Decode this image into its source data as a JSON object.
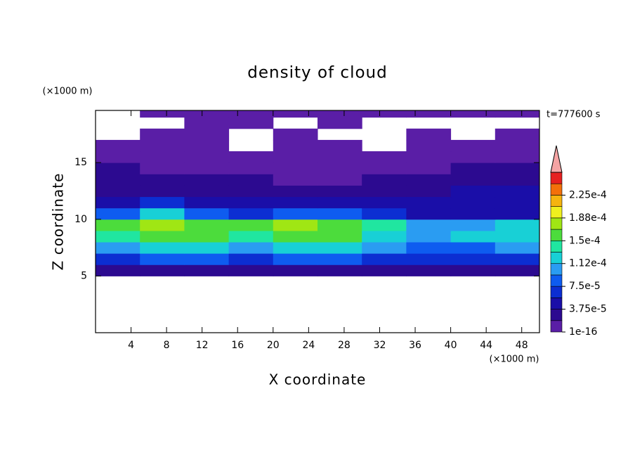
{
  "chart_data": {
    "type": "contour",
    "title": "density of cloud",
    "xlabel": "X coordinate",
    "ylabel": "Z coordinate",
    "xunit": "(×1000 m)",
    "yunit": "(×1000 m)",
    "annotation": "t=777600 s",
    "xlim": [
      0,
      50
    ],
    "ylim": [
      0,
      19.6
    ],
    "xticks": [
      4,
      8,
      12,
      16,
      20,
      24,
      28,
      32,
      36,
      40,
      44,
      48
    ],
    "yticks": [
      5,
      10,
      15
    ],
    "x": [
      2.5,
      7.5,
      12.5,
      17.5,
      22.5,
      27.5,
      32.5,
      37.5,
      42.5,
      47.5
    ],
    "z": [
      0.5,
      1.5,
      2.5,
      3.5,
      4.5,
      5.5,
      6.5,
      7.5,
      8.5,
      9.5,
      10.5,
      11.5,
      12.5,
      13.5,
      14.5,
      15.5,
      16.5,
      17.5,
      18.5,
      19.5
    ],
    "values": [
      [
        null,
        null,
        null,
        null,
        null,
        null,
        null,
        null,
        null,
        null
      ],
      [
        null,
        null,
        null,
        null,
        null,
        null,
        null,
        null,
        null,
        null
      ],
      [
        null,
        null,
        null,
        null,
        null,
        null,
        null,
        null,
        null,
        null
      ],
      [
        null,
        null,
        null,
        null,
        null,
        null,
        null,
        null,
        null,
        null
      ],
      [
        null,
        null,
        null,
        null,
        null,
        null,
        null,
        null,
        null,
        null
      ],
      [
        3e-05,
        3e-05,
        3e-05,
        3e-05,
        3e-05,
        3e-05,
        3e-05,
        3e-05,
        3e-05,
        3e-05
      ],
      [
        7e-05,
        8e-05,
        8e-05,
        7e-05,
        8e-05,
        8e-05,
        7e-05,
        6e-05,
        7e-05,
        7e-05
      ],
      [
        0.00011,
        0.00013,
        0.00012,
        0.00011,
        0.00012,
        0.00012,
        0.0001,
        9e-05,
        9e-05,
        0.0001
      ],
      [
        0.00014,
        0.00016,
        0.00015,
        0.00014,
        0.00015,
        0.00015,
        0.00013,
        0.00011,
        0.00012,
        0.00013
      ],
      [
        0.00015,
        0.00018,
        0.00016,
        0.000155,
        0.00017,
        0.000165,
        0.00014,
        0.00011,
        0.00011,
        0.00012
      ],
      [
        9e-05,
        0.00012,
        9e-05,
        6e-05,
        8e-05,
        8e-05,
        6e-05,
        5e-05,
        4e-05,
        5e-05
      ],
      [
        5e-05,
        6e-05,
        5e-05,
        4e-05,
        4e-05,
        4e-05,
        4e-05,
        4e-05,
        5e-05,
        5e-05
      ],
      [
        3e-05,
        3e-05,
        3e-05,
        3e-05,
        2e-05,
        2e-05,
        3e-05,
        3e-05,
        4e-05,
        4e-05
      ],
      [
        2e-05,
        2e-05,
        2e-05,
        2e-05,
        1.5e-05,
        1.5e-05,
        2e-05,
        2e-05,
        3e-05,
        3e-05
      ],
      [
        2e-05,
        1e-05,
        1e-05,
        1e-05,
        1e-05,
        1e-05,
        1e-05,
        1.5e-05,
        2e-05,
        2e-05
      ],
      [
        1e-05,
        1e-05,
        5e-06,
        5e-06,
        5e-06,
        5e-06,
        5e-06,
        5e-06,
        1e-05,
        1e-05
      ],
      [
        5e-06,
        5e-06,
        5e-06,
        null,
        5e-06,
        5e-06,
        null,
        5e-06,
        5e-06,
        5e-06
      ],
      [
        null,
        5e-06,
        5e-06,
        null,
        5e-06,
        null,
        null,
        5e-06,
        null,
        5e-06
      ],
      [
        null,
        null,
        5e-06,
        5e-06,
        null,
        5e-06,
        null,
        null,
        null,
        null
      ],
      [
        null,
        5e-06,
        5e-06,
        5e-06,
        5e-06,
        5e-06,
        5e-06,
        5e-06,
        5e-06,
        5e-06
      ]
    ],
    "colorbar": {
      "levels": [
        1e-16,
        1.875e-05,
        3.75e-05,
        5.625e-05,
        7.5e-05,
        9.375e-05,
        0.0001125,
        0.00013125,
        0.00015,
        0.00016875,
        0.0001875,
        0.00020625,
        0.000225,
        0.00024375,
        0.0002625
      ],
      "colors": [
        "#5a1ea6",
        "#2c0a90",
        "#1a0ea8",
        "#0c2ed2",
        "#0e5cf0",
        "#2a9cf2",
        "#18d0d6",
        "#20e6a0",
        "#4cdc3c",
        "#a0e614",
        "#f0f01e",
        "#f5b40f",
        "#f3700a",
        "#e62020"
      ],
      "extend_color": "#f5a4a4",
      "ticks": [
        {
          "value": 1e-16,
          "label": "1e-16"
        },
        {
          "value": 3.75e-05,
          "label": "3.75e-5"
        },
        {
          "value": 7.5e-05,
          "label": "7.5e-5"
        },
        {
          "value": 0.0001125,
          "label": "1.12e-4"
        },
        {
          "value": 0.00015,
          "label": "1.5e-4"
        },
        {
          "value": 0.0001875,
          "label": "1.88e-4"
        },
        {
          "value": 0.000225,
          "label": "2.25e-4"
        }
      ]
    }
  }
}
